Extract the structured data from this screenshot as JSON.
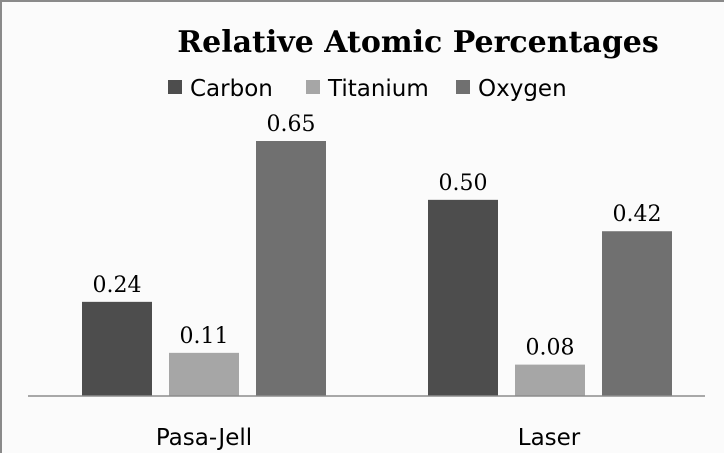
{
  "chart_data": {
    "type": "bar",
    "title": "Relative Atomic Percentages",
    "categories": [
      "Pasa-Jell",
      "Laser"
    ],
    "series": [
      {
        "name": "Carbon",
        "values": [
          0.24,
          0.5
        ],
        "labels": [
          "0.24",
          "0.50"
        ],
        "color": "#4d4d4d"
      },
      {
        "name": "Titanium",
        "values": [
          0.11,
          0.08
        ],
        "labels": [
          "0.11",
          "0.08"
        ],
        "color": "#a6a6a6"
      },
      {
        "name": "Oxygen",
        "values": [
          0.65,
          0.42
        ],
        "labels": [
          "0.65",
          "0.42"
        ],
        "color": "#707070"
      }
    ],
    "ylim": [
      0,
      0.65
    ],
    "legend_position": "top",
    "grid": false
  }
}
